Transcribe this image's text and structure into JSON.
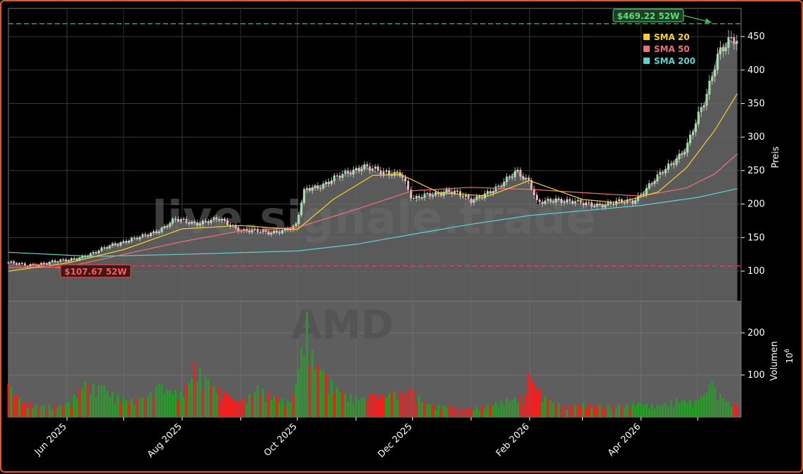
{
  "chart_data": [
    {
      "type": "candlestick",
      "panel": "price",
      "watermark": "live.signale.trade",
      "ylabel": "Preis",
      "ylim": [
        55,
        492
      ],
      "yticks": [
        100,
        150,
        200,
        250,
        300,
        350,
        400,
        450
      ],
      "grid": true,
      "legend": {
        "placement": "top-right",
        "items": [
          {
            "name": "SMA 20",
            "color": "#f5d327"
          },
          {
            "name": "SMA 50",
            "color": "#f07178"
          },
          {
            "name": "SMA 200",
            "color": "#5fd3d0"
          }
        ]
      },
      "x_range": [
        "2025-05-01",
        "2026-05-24"
      ],
      "close_series": [
        [
          "2025-05-01",
          113
        ],
        [
          "2025-05-10",
          108
        ],
        [
          "2025-05-20",
          112
        ],
        [
          "2025-06-01",
          116
        ],
        [
          "2025-06-15",
          126
        ],
        [
          "2025-06-25",
          140
        ],
        [
          "2025-07-10",
          150
        ],
        [
          "2025-07-20",
          162
        ],
        [
          "2025-07-28",
          176
        ],
        [
          "2025-08-08",
          172
        ],
        [
          "2025-08-20",
          177
        ],
        [
          "2025-09-01",
          162
        ],
        [
          "2025-09-15",
          157
        ],
        [
          "2025-09-30",
          165
        ],
        [
          "2025-10-05",
          222
        ],
        [
          "2025-10-15",
          230
        ],
        [
          "2025-10-25",
          243
        ],
        [
          "2025-11-05",
          258
        ],
        [
          "2025-11-15",
          245
        ],
        [
          "2025-11-25",
          248
        ],
        [
          "2025-12-01",
          205
        ],
        [
          "2025-12-10",
          215
        ],
        [
          "2025-12-20",
          220
        ],
        [
          "2026-01-01",
          206
        ],
        [
          "2026-01-05",
          212
        ],
        [
          "2026-01-15",
          222
        ],
        [
          "2026-01-25",
          252
        ],
        [
          "2026-02-01",
          232
        ],
        [
          "2026-02-05",
          200
        ],
        [
          "2026-02-15",
          208
        ],
        [
          "2026-03-01",
          200
        ],
        [
          "2026-03-15",
          200
        ],
        [
          "2026-03-28",
          205
        ],
        [
          "2026-04-10",
          240
        ],
        [
          "2026-04-25",
          285
        ],
        [
          "2026-05-05",
          355
        ],
        [
          "2026-05-12",
          430
        ],
        [
          "2026-05-18",
          445
        ],
        [
          "2026-05-22",
          440
        ]
      ],
      "sma_20": [
        [
          "2025-05-01",
          100
        ],
        [
          "2025-06-01",
          112
        ],
        [
          "2025-07-01",
          132
        ],
        [
          "2025-08-01",
          163
        ],
        [
          "2025-09-01",
          168
        ],
        [
          "2025-10-01",
          162
        ],
        [
          "2025-10-20",
          207
        ],
        [
          "2025-11-10",
          243
        ],
        [
          "2025-11-25",
          244
        ],
        [
          "2025-12-15",
          217
        ],
        [
          "2026-01-10",
          212
        ],
        [
          "2026-02-01",
          235
        ],
        [
          "2026-03-01",
          207
        ],
        [
          "2026-03-20",
          202
        ],
        [
          "2026-04-10",
          218
        ],
        [
          "2026-04-25",
          254
        ],
        [
          "2026-05-10",
          310
        ],
        [
          "2026-05-22",
          365
        ]
      ],
      "sma_50": [
        [
          "2025-05-01",
          105
        ],
        [
          "2025-06-01",
          106
        ],
        [
          "2025-07-01",
          125
        ],
        [
          "2025-08-01",
          144
        ],
        [
          "2025-09-01",
          160
        ],
        [
          "2025-10-01",
          165
        ],
        [
          "2025-11-01",
          192
        ],
        [
          "2025-12-01",
          220
        ],
        [
          "2026-01-01",
          225
        ],
        [
          "2026-02-01",
          222
        ],
        [
          "2026-03-01",
          217
        ],
        [
          "2026-04-01",
          212
        ],
        [
          "2026-04-25",
          224
        ],
        [
          "2026-05-10",
          245
        ],
        [
          "2026-05-22",
          275
        ]
      ],
      "sma_200": [
        [
          "2025-05-01",
          128
        ],
        [
          "2025-06-15",
          122
        ],
        [
          "2025-08-01",
          125
        ],
        [
          "2025-10-01",
          130
        ],
        [
          "2025-11-01",
          140
        ],
        [
          "2025-12-01",
          155
        ],
        [
          "2026-01-01",
          170
        ],
        [
          "2026-02-01",
          183
        ],
        [
          "2026-03-01",
          190
        ],
        [
          "2026-04-01",
          198
        ],
        [
          "2026-05-01",
          210
        ],
        [
          "2026-05-22",
          223
        ]
      ],
      "annotations": [
        {
          "text": "$469.22 52W",
          "y": 469.22,
          "color": "#3fbf5f"
        },
        {
          "text": "$107.67 52W",
          "y": 107.67,
          "color": "#e0474c"
        }
      ]
    },
    {
      "type": "bar",
      "panel": "volume",
      "watermark": "AMD",
      "ylabel": "Volumen",
      "unit": "10^6",
      "ylim": [
        0,
        275
      ],
      "yticks": [
        100,
        200
      ],
      "grid": true,
      "xticks": [
        {
          "date": "2025-06-01",
          "label": "Jun 2025"
        },
        {
          "date": "2025-08-01",
          "label": "Aug 2025"
        },
        {
          "date": "2025-10-01",
          "label": "Oct 2025"
        },
        {
          "date": "2025-12-01",
          "label": "Dec 2025"
        },
        {
          "date": "2026-02-01",
          "label": "Feb 2026"
        },
        {
          "date": "2026-04-01",
          "label": "Apr 2026"
        }
      ],
      "volume_series": [
        [
          "2025-05-01",
          80
        ],
        [
          "2025-05-10",
          35
        ],
        [
          "2025-05-20",
          30
        ],
        [
          "2025-06-01",
          32
        ],
        [
          "2025-06-10",
          85
        ],
        [
          "2025-06-20",
          75
        ],
        [
          "2025-07-01",
          45
        ],
        [
          "2025-07-10",
          45
        ],
        [
          "2025-07-20",
          80
        ],
        [
          "2025-08-01",
          60
        ],
        [
          "2025-08-08",
          130
        ],
        [
          "2025-08-15",
          90
        ],
        [
          "2025-08-25",
          55
        ],
        [
          "2025-09-01",
          38
        ],
        [
          "2025-09-10",
          75
        ],
        [
          "2025-09-20",
          50
        ],
        [
          "2025-09-28",
          35
        ],
        [
          "2025-10-06",
          250
        ],
        [
          "2025-10-09",
          160
        ],
        [
          "2025-10-15",
          110
        ],
        [
          "2025-10-25",
          60
        ],
        [
          "2025-11-01",
          50
        ],
        [
          "2025-11-10",
          55
        ],
        [
          "2025-11-20",
          60
        ],
        [
          "2025-11-30",
          70
        ],
        [
          "2025-12-10",
          30
        ],
        [
          "2025-12-20",
          28
        ],
        [
          "2026-01-01",
          22
        ],
        [
          "2026-01-10",
          30
        ],
        [
          "2026-01-20",
          45
        ],
        [
          "2026-01-30",
          55
        ],
        [
          "2026-02-01",
          105
        ],
        [
          "2026-02-10",
          45
        ],
        [
          "2026-02-20",
          30
        ],
        [
          "2026-03-01",
          35
        ],
        [
          "2026-03-10",
          28
        ],
        [
          "2026-03-20",
          30
        ],
        [
          "2026-03-31",
          35
        ],
        [
          "2026-04-10",
          30
        ],
        [
          "2026-04-20",
          45
        ],
        [
          "2026-05-01",
          40
        ],
        [
          "2026-05-08",
          85
        ],
        [
          "2026-05-15",
          45
        ],
        [
          "2026-05-22",
          28
        ]
      ]
    }
  ]
}
